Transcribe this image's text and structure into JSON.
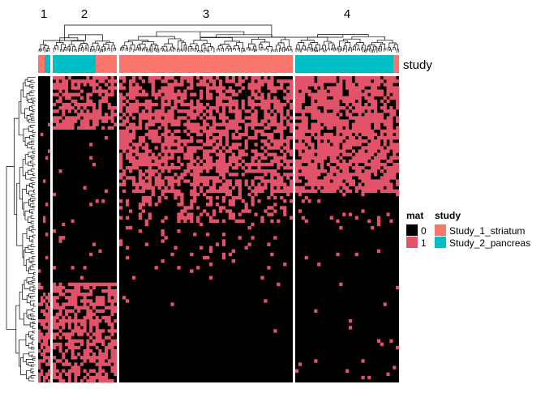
{
  "chart_data": {
    "type": "heatmap",
    "title": "",
    "column_split_labels": [
      "1",
      "2",
      "3",
      "4"
    ],
    "annotation": {
      "name": "study",
      "levels": [
        {
          "label": "Study_1_striatum",
          "color": "#F8766D"
        },
        {
          "label": "Study_2_pancreas",
          "color": "#00BFC4"
        }
      ]
    },
    "legends": {
      "mat": {
        "title": "mat",
        "levels": [
          {
            "label": "0",
            "color": "#000000"
          },
          {
            "label": "1",
            "color": "#E2536A"
          }
        ]
      },
      "study": {
        "title": "study",
        "levels": [
          {
            "label": "Study_1_striatum",
            "color": "#F8766D"
          },
          {
            "label": "Study_2_pancreas",
            "color": "#00BFC4"
          }
        ]
      }
    },
    "matrix": {
      "values": [
        0,
        1
      ],
      "row_count": 92,
      "column_counts": [
        5,
        21,
        54,
        33
      ],
      "pattern_description": "Column groups 2-4 mostly 1 in upper rows; group 2 has a large block of 0 mid rows and 1 at bottom; groups 3-4 are 0 in lower rows; group 1 is mostly 0 with some 1 in upper and bottom rows"
    },
    "column_annotation_sequence": [
      [
        "Study_1_striatum",
        "Study_1_striatum",
        "Study_2_pancreas",
        "Study_2_pancreas",
        "Study_2_pancreas"
      ],
      "2: first 13 Study_2_pancreas then 8 Study_1_striatum",
      "3: all Study_1_striatum",
      "4: 31 Study_2_pancreas then 2 Study_1_striatum"
    ]
  }
}
